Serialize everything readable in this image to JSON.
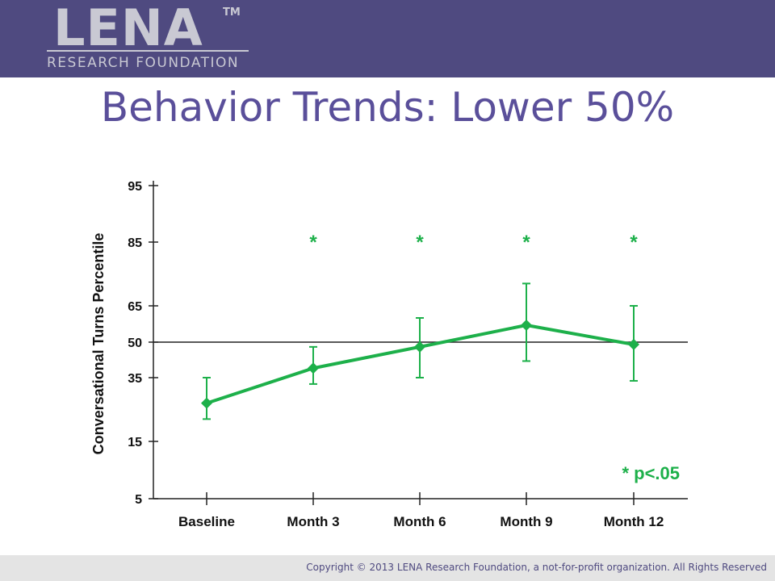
{
  "header": {
    "logo_word": "LENA",
    "logo_tm": "TM",
    "logo_sub": "RESEARCH FOUNDATION"
  },
  "slide_title": "Behavior Trends: Lower 50%",
  "footer": {
    "copyright": "Copyright © 2013 LENA Research Foundation, a not-for-profit organization. All Rights Reserved"
  },
  "colors": {
    "header_bg": "#4f4a80",
    "title": "#5a4f9a",
    "series": "#1db04a",
    "axis": "#222222"
  },
  "chart_data": {
    "type": "line",
    "ylabel": "Conversational Turns Percentile",
    "xlabel": "",
    "y_ticks": [
      95,
      85,
      65,
      50,
      35,
      15,
      5
    ],
    "categories": [
      "Baseline",
      "Month 3",
      "Month 6",
      "Month 9",
      "Month 12"
    ],
    "series": [
      {
        "values": [
          27,
          39,
          48,
          57,
          49
        ],
        "error_upper": [
          35,
          48,
          60,
          72,
          65
        ],
        "error_lower": [
          22,
          33,
          35,
          42,
          34
        ]
      }
    ],
    "reference_line": 50,
    "significance_marker": "*",
    "significance_categories": [
      "Month 3",
      "Month 6",
      "Month 9",
      "Month 12"
    ],
    "annotation": "* p<.05",
    "legend": "none",
    "grid": false
  }
}
